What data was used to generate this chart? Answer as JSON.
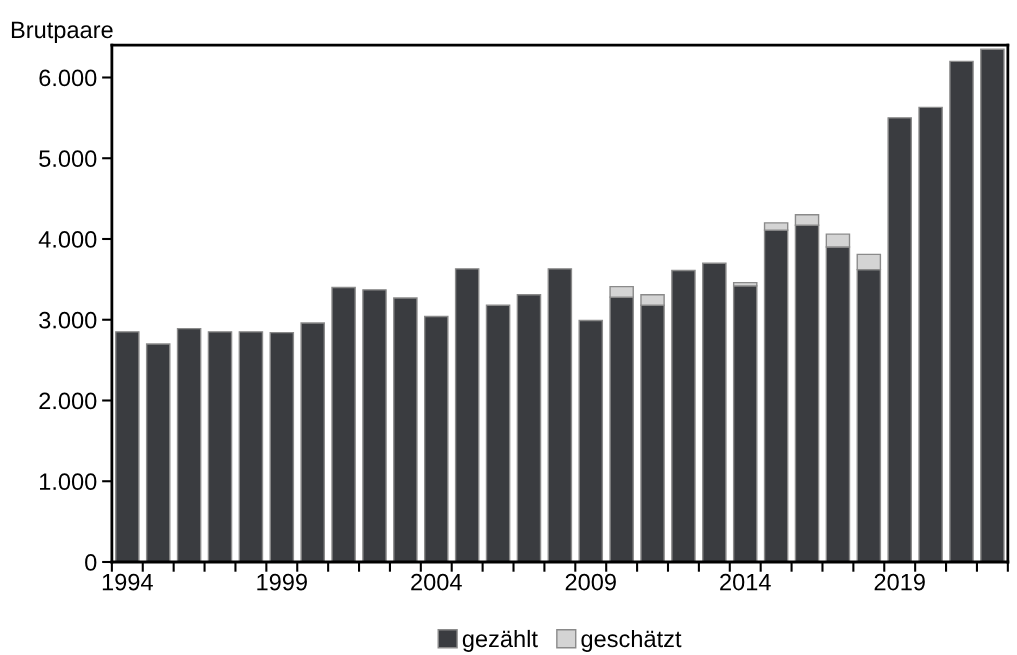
{
  "chart_data": {
    "type": "bar",
    "stacked": true,
    "ylabel": "Brutpaare",
    "categories": [
      "1994",
      null,
      null,
      null,
      null,
      "1999",
      null,
      null,
      null,
      null,
      "2004",
      null,
      null,
      null,
      null,
      "2009",
      null,
      null,
      null,
      null,
      "2014",
      null,
      null,
      null,
      null,
      "2019",
      null,
      null,
      null
    ],
    "series": [
      {
        "name": "gezählt",
        "color": "#3a3c40",
        "values": [
          2850,
          2700,
          2890,
          2850,
          2850,
          2840,
          2960,
          3400,
          3370,
          3270,
          3040,
          3630,
          3180,
          3310,
          3630,
          2990,
          3280,
          3180,
          3610,
          3700,
          3420,
          4110,
          4170,
          3900,
          3620,
          5500,
          5630,
          6200,
          6350
        ]
      },
      {
        "name": "geschätzt",
        "color": "#d4d4d4",
        "values": [
          null,
          null,
          null,
          null,
          null,
          null,
          null,
          null,
          null,
          null,
          null,
          null,
          null,
          null,
          null,
          null,
          130,
          130,
          null,
          null,
          40,
          90,
          130,
          160,
          190,
          null,
          null,
          null,
          null
        ]
      }
    ],
    "ylim": [
      0,
      6400
    ],
    "yticks": [
      {
        "value": 0,
        "label": "0"
      },
      {
        "value": 1000,
        "label": "1.000"
      },
      {
        "value": 2000,
        "label": "2.000"
      },
      {
        "value": 3000,
        "label": "3.000"
      },
      {
        "value": 4000,
        "label": "4.000"
      },
      {
        "value": 5000,
        "label": "5.000"
      },
      {
        "value": 6000,
        "label": "6.000"
      }
    ],
    "grid": false,
    "legend": "bottom"
  }
}
